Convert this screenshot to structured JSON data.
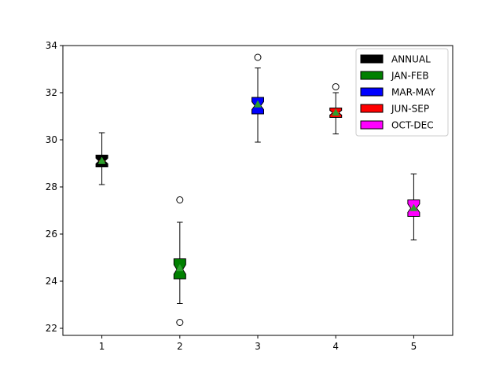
{
  "chart_data": {
    "type": "boxplot",
    "categories": [
      "1",
      "2",
      "3",
      "4",
      "5"
    ],
    "ylim": [
      21.7,
      34
    ],
    "yticks": [
      22,
      24,
      26,
      28,
      30,
      32,
      34
    ],
    "notched": true,
    "show_means": true,
    "legend_position": "top-right",
    "series": [
      {
        "name": "ANNUAL",
        "color": "#000000",
        "x": 1,
        "whisker_low": 28.1,
        "q1": 28.85,
        "median": 29.1,
        "q3": 29.35,
        "whisker_high": 30.3,
        "mean": 29.1,
        "notch_low": 28.98,
        "notch_high": 29.22,
        "outliers": []
      },
      {
        "name": "JAN-FEB",
        "color": "#008000",
        "x": 2,
        "whisker_low": 23.05,
        "q1": 24.1,
        "median": 24.5,
        "q3": 24.95,
        "whisker_high": 26.5,
        "mean": 24.55,
        "notch_low": 24.3,
        "notch_high": 24.7,
        "outliers": [
          27.45,
          22.25
        ]
      },
      {
        "name": "MAR-MAY",
        "color": "#0000ff",
        "x": 3,
        "whisker_low": 29.9,
        "q1": 31.1,
        "median": 31.45,
        "q3": 31.8,
        "whisker_high": 33.05,
        "mean": 31.5,
        "notch_low": 31.28,
        "notch_high": 31.62,
        "outliers": [
          33.5
        ]
      },
      {
        "name": "JUN-SEP",
        "color": "#ff0000",
        "x": 4,
        "whisker_low": 30.25,
        "q1": 30.95,
        "median": 31.15,
        "q3": 31.35,
        "whisker_high": 32.0,
        "mean": 31.15,
        "notch_low": 31.05,
        "notch_high": 31.25,
        "outliers": [
          32.25
        ]
      },
      {
        "name": "OCT-DEC",
        "color": "#ff00ff",
        "x": 5,
        "whisker_low": 25.75,
        "q1": 26.75,
        "median": 27.1,
        "q3": 27.45,
        "whisker_high": 28.55,
        "mean": 27.1,
        "notch_low": 26.92,
        "notch_high": 27.28,
        "outliers": []
      }
    ],
    "mean_marker_color": "#2ca02c"
  }
}
